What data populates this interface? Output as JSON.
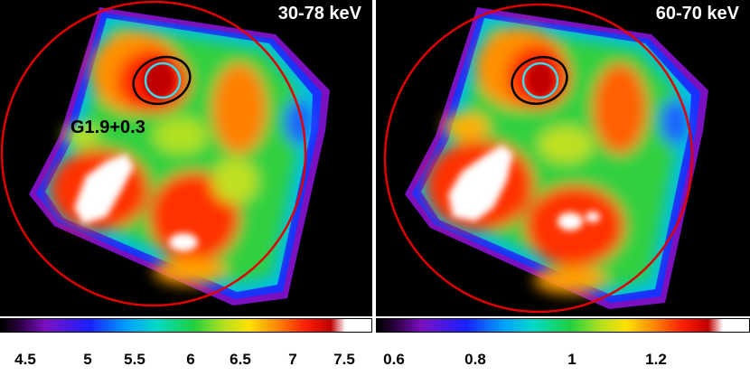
{
  "panels": [
    {
      "energy_label": "30-78 keV",
      "source_label": "G1.9+0.3"
    },
    {
      "energy_label": "60-70 keV"
    }
  ],
  "colorbars": [
    {
      "ticks": [
        "4.5",
        "5",
        "5.5",
        "6",
        "6.5",
        "7",
        "7.5"
      ]
    },
    {
      "ticks": [
        "0.6",
        "0.8",
        "1",
        "1.2"
      ]
    }
  ],
  "colors": {
    "background": "#000000",
    "circle": "#e00000",
    "source_inner": "#40d8e8",
    "source_outer": "#000000"
  }
}
